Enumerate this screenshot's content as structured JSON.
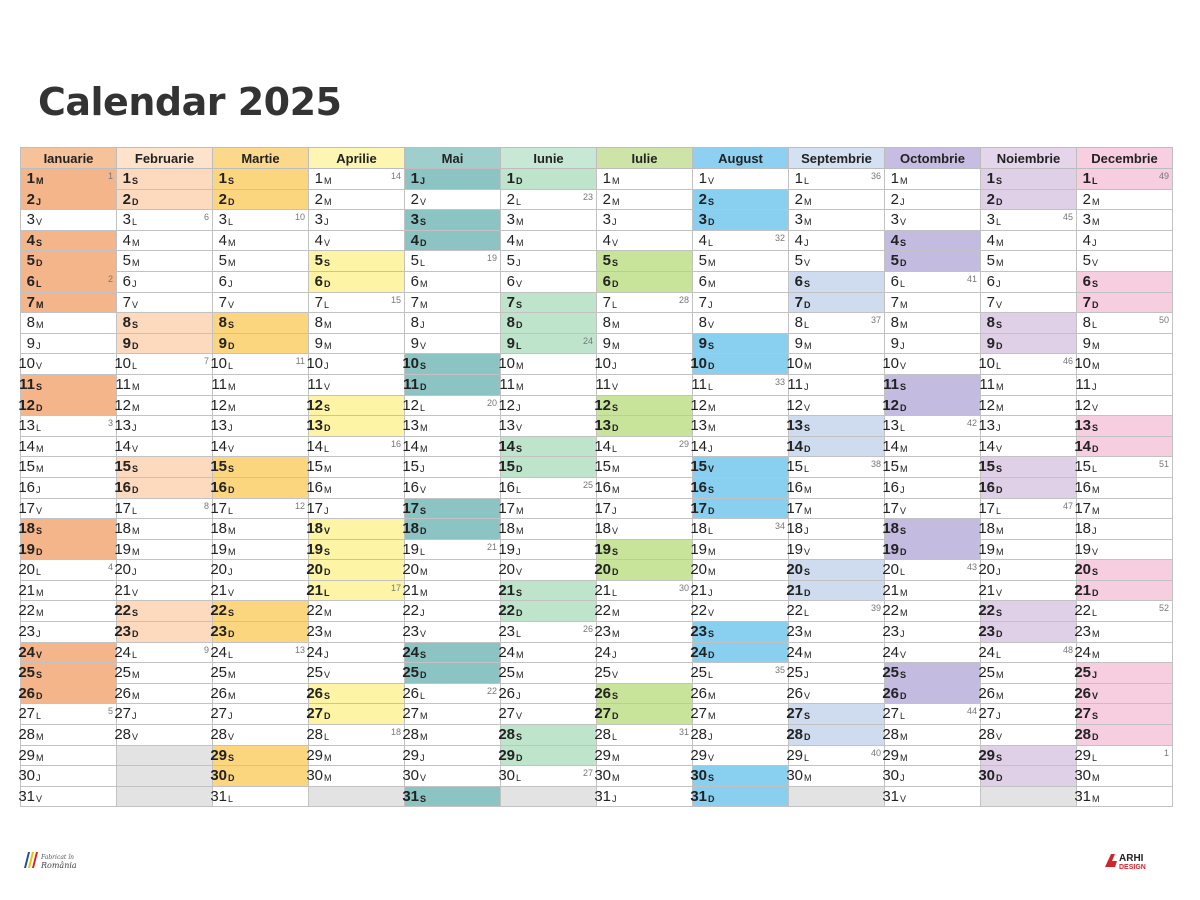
{
  "title": "Calendar 2025",
  "colors": {
    "Ianuarie": {
      "header": "#f6c29a",
      "weekend": "#f5b58a",
      "holiday": "#f5b58a"
    },
    "Februarie": {
      "header": "#fde3cc",
      "weekend": "#fdd9bd"
    },
    "Martie": {
      "header": "#fcd88a",
      "weekend": "#fcd57f"
    },
    "Aprilie": {
      "header": "#fdf6b2",
      "weekend": "#fdf4a6"
    },
    "Mai": {
      "header": "#9fcfcc",
      "weekend": "#8cc3c3"
    },
    "Iunie": {
      "header": "#c8e8d6",
      "weekend": "#bfe4cc"
    },
    "Iulie": {
      "header": "#cde4a6",
      "weekend": "#c8e39a"
    },
    "August": {
      "header": "#8ed0f1",
      "weekend": "#88cff0"
    },
    "Septembrie": {
      "header": "#d3e1f3",
      "weekend": "#cfdcf0"
    },
    "Octombrie": {
      "header": "#c7bde3",
      "weekend": "#c4bbe1"
    },
    "Noiembrie": {
      "header": "#e4d5ea",
      "weekend": "#dfd0e8"
    },
    "Decembrie": {
      "header": "#f7cfe0",
      "weekend": "#f7cde0"
    }
  },
  "months": [
    {
      "name": "Ianuarie",
      "start": 3,
      "days": 31,
      "extra_colored": [
        1,
        2,
        6,
        7,
        24
      ]
    },
    {
      "name": "Februarie",
      "start": 6,
      "days": 28,
      "extra_colored": []
    },
    {
      "name": "Martie",
      "start": 6,
      "days": 31,
      "extra_colored": []
    },
    {
      "name": "Aprilie",
      "start": 2,
      "days": 30,
      "extra_colored": [
        18,
        21
      ]
    },
    {
      "name": "Mai",
      "start": 4,
      "days": 31,
      "extra_colored": [
        1
      ]
    },
    {
      "name": "Iunie",
      "start": 0,
      "days": 30,
      "extra_colored": [
        1,
        9
      ]
    },
    {
      "name": "Iulie",
      "start": 2,
      "days": 31,
      "extra_colored": []
    },
    {
      "name": "August",
      "start": 5,
      "days": 31,
      "extra_colored": [
        15
      ]
    },
    {
      "name": "Septembrie",
      "start": 1,
      "days": 30,
      "extra_colored": []
    },
    {
      "name": "Octombrie",
      "start": 3,
      "days": 31,
      "extra_colored": []
    },
    {
      "name": "Noiembrie",
      "start": 6,
      "days": 30,
      "extra_colored": []
    },
    {
      "name": "Decembrie",
      "start": 1,
      "days": 31,
      "extra_colored": [
        1,
        25,
        26
      ]
    }
  ],
  "day_letters": [
    "D",
    "L",
    "M",
    "M",
    "J",
    "V",
    "S"
  ],
  "week_numbers": {
    "Ianuarie": {
      "1": "1",
      "6": "2",
      "13": "3",
      "20": "4",
      "27": "5"
    },
    "Februarie": {
      "3": "6",
      "10": "7",
      "17": "8",
      "24": "9"
    },
    "Martie": {
      "3": "10",
      "10": "11",
      "17": "12",
      "24": "13"
    },
    "Aprilie": {
      "1": "14",
      "7": "15",
      "14": "16",
      "21": "17",
      "28": "18"
    },
    "Mai": {
      "5": "19",
      "12": "20",
      "19": "21",
      "26": "22"
    },
    "Iunie": {
      "2": "23",
      "9": "24",
      "16": "25",
      "23": "26",
      "30": "27"
    },
    "Iulie": {
      "7": "28",
      "14": "29",
      "21": "30",
      "28": "31"
    },
    "August": {
      "4": "32",
      "11": "33",
      "18": "34",
      "25": "35"
    },
    "Septembrie": {
      "1": "36",
      "8": "37",
      "15": "38",
      "22": "39",
      "29": "40"
    },
    "Octombrie": {
      "6": "41",
      "13": "42",
      "20": "43",
      "27": "44"
    },
    "Noiembrie": {
      "3": "45",
      "10": "46",
      "17": "47",
      "24": "48"
    },
    "Decembrie": {
      "1": "49",
      "8": "50",
      "15": "51",
      "22": "52",
      "29": "1"
    }
  },
  "footer": {
    "left_logo": "Fabricat în România",
    "right_logo": "ARHI DESIGN"
  }
}
